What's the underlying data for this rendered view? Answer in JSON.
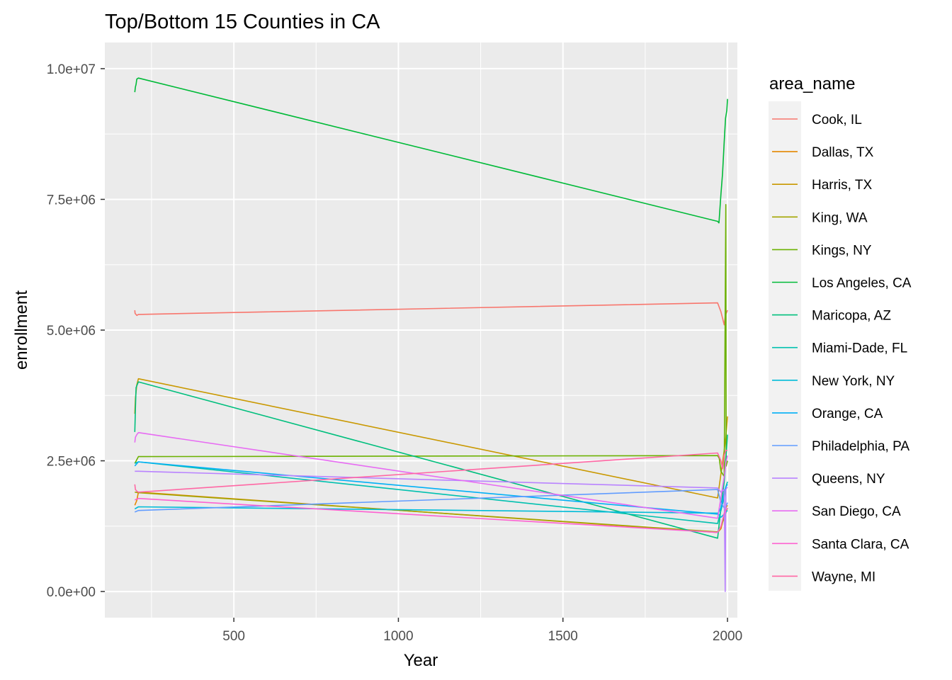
{
  "chart_data": {
    "type": "line",
    "title": "Top/Bottom 15 Counties in CA",
    "xlabel": "Year",
    "ylabel": "enrollment",
    "xlim": [
      108,
      2030
    ],
    "ylim": [
      -500000,
      10500000
    ],
    "xticks": [
      500,
      1000,
      1500,
      2000
    ],
    "xtick_labels": [
      "500",
      "1000",
      "1500",
      "2000"
    ],
    "yticks": [
      0,
      2500000,
      5000000,
      7500000,
      10000000
    ],
    "ytick_labels": [
      "0.0e+00",
      "2.5e+06",
      "5.0e+06",
      "7.5e+06",
      "1.0e+07"
    ],
    "grid": true,
    "legend_title": "area_name",
    "legend_position": "right",
    "series": [
      {
        "name": "Cook, IL",
        "color": "#F8766D",
        "points": [
          [
            199,
            5380000
          ],
          [
            200,
            5320000
          ],
          [
            205,
            5280000
          ],
          [
            210,
            5300000
          ],
          [
            1970,
            5520000
          ],
          [
            1980,
            5350000
          ],
          [
            1990,
            5100000
          ],
          [
            1993,
            5250000
          ],
          [
            1995,
            5300000
          ],
          [
            2000,
            5380000
          ]
        ]
      },
      {
        "name": "Dallas, TX",
        "color": "#E58700",
        "points": [
          [
            199,
            1650000
          ],
          [
            205,
            1740000
          ],
          [
            210,
            1900000
          ],
          [
            1970,
            1130000
          ],
          [
            1980,
            1200000
          ],
          [
            1990,
            1450000
          ],
          [
            1995,
            1600000
          ],
          [
            2000,
            1650000
          ]
        ]
      },
      {
        "name": "Harris, TX",
        "color": "#C99800",
        "points": [
          [
            199,
            3400000
          ],
          [
            201,
            3700000
          ],
          [
            205,
            3950000
          ],
          [
            210,
            4070000
          ],
          [
            1970,
            1790000
          ],
          [
            1980,
            2250000
          ],
          [
            1990,
            2700000
          ],
          [
            1995,
            2950000
          ],
          [
            2000,
            3350000
          ]
        ]
      },
      {
        "name": "King, WA",
        "color": "#A3A500",
        "points": [
          [
            199,
            1900000
          ],
          [
            210,
            1890000
          ],
          [
            1970,
            1140000
          ],
          [
            1980,
            1250000
          ],
          [
            1990,
            1400000
          ],
          [
            1995,
            1500000
          ],
          [
            2000,
            1600000
          ]
        ]
      },
      {
        "name": "Kings, NY",
        "color": "#6BB100",
        "points": [
          [
            199,
            2450000
          ],
          [
            210,
            2580000
          ],
          [
            1970,
            2600000
          ],
          [
            1975,
            2550000
          ],
          [
            1980,
            2300000
          ],
          [
            1990,
            2200000
          ],
          [
            1995,
            7400000
          ],
          [
            1996,
            2400000
          ],
          [
            2000,
            2500000
          ]
        ]
      },
      {
        "name": "Los Angeles, CA",
        "color": "#00BA38",
        "points": [
          [
            199,
            9550000
          ],
          [
            201,
            9650000
          ],
          [
            203,
            9700000
          ],
          [
            205,
            9800000
          ],
          [
            210,
            9820000
          ],
          [
            1970,
            7080000
          ],
          [
            1974,
            7050000
          ],
          [
            1980,
            7600000
          ],
          [
            1985,
            8000000
          ],
          [
            1990,
            8600000
          ],
          [
            1994,
            9050000
          ],
          [
            1998,
            9200000
          ],
          [
            2000,
            9420000
          ]
        ]
      },
      {
        "name": "Maricopa, AZ",
        "color": "#00BF7D",
        "points": [
          [
            199,
            3050000
          ],
          [
            201,
            3500000
          ],
          [
            203,
            3900000
          ],
          [
            210,
            4010000
          ],
          [
            1970,
            1020000
          ],
          [
            1980,
            1600000
          ],
          [
            1990,
            2100000
          ],
          [
            1995,
            2500000
          ],
          [
            2000,
            3000000
          ]
        ]
      },
      {
        "name": "Miami-Dade, FL",
        "color": "#00C0AF",
        "points": [
          [
            199,
            2450000
          ],
          [
            210,
            2480000
          ],
          [
            1970,
            1300000
          ],
          [
            1980,
            1550000
          ],
          [
            1990,
            1800000
          ],
          [
            1995,
            2000000
          ],
          [
            2000,
            2100000
          ]
        ]
      },
      {
        "name": "New York, NY",
        "color": "#00BCD8",
        "points": [
          [
            199,
            1580000
          ],
          [
            210,
            1620000
          ],
          [
            1970,
            1500000
          ],
          [
            1980,
            1420000
          ],
          [
            1990,
            1480000
          ],
          [
            1995,
            1520000
          ],
          [
            2000,
            1550000
          ]
        ]
      },
      {
        "name": "Orange, CA",
        "color": "#00B0F6",
        "points": [
          [
            199,
            2400000
          ],
          [
            210,
            2480000
          ],
          [
            1970,
            1480000
          ],
          [
            1980,
            1600000
          ],
          [
            1990,
            1900000
          ],
          [
            1995,
            2000000
          ],
          [
            2000,
            2050000
          ]
        ]
      },
      {
        "name": "Philadelphia, PA",
        "color": "#619CFF",
        "points": [
          [
            199,
            1520000
          ],
          [
            210,
            1550000
          ],
          [
            1970,
            1950000
          ],
          [
            1980,
            1700000
          ],
          [
            1990,
            1600000
          ],
          [
            1995,
            1620000
          ],
          [
            2000,
            1700000
          ]
        ]
      },
      {
        "name": "Queens, NY",
        "color": "#B983FF",
        "points": [
          [
            199,
            2300000
          ],
          [
            210,
            2300000
          ],
          [
            1970,
            1980000
          ],
          [
            1980,
            1900000
          ],
          [
            1990,
            1950000
          ],
          [
            1993,
            0
          ],
          [
            1995,
            1950000
          ],
          [
            2000,
            2000000
          ]
        ]
      },
      {
        "name": "San Diego, CA",
        "color": "#E76BF3",
        "points": [
          [
            199,
            2850000
          ],
          [
            201,
            2950000
          ],
          [
            205,
            3000000
          ],
          [
            210,
            3040000
          ],
          [
            1970,
            1400000
          ],
          [
            1980,
            1800000
          ],
          [
            1990,
            2200000
          ],
          [
            1995,
            2450000
          ],
          [
            2000,
            2600000
          ]
        ]
      },
      {
        "name": "Santa Clara, CA",
        "color": "#FD61D1",
        "points": [
          [
            199,
            1750000
          ],
          [
            210,
            1780000
          ],
          [
            1970,
            1130000
          ],
          [
            1980,
            1250000
          ],
          [
            1990,
            1500000
          ],
          [
            1995,
            1550000
          ],
          [
            2000,
            1600000
          ]
        ]
      },
      {
        "name": "Wayne, MI",
        "color": "#FF67A4",
        "points": [
          [
            199,
            2050000
          ],
          [
            201,
            1950000
          ],
          [
            205,
            1920000
          ],
          [
            210,
            1900000
          ],
          [
            1970,
            2650000
          ],
          [
            1980,
            2500000
          ],
          [
            1985,
            2350000
          ],
          [
            1990,
            2600000
          ],
          [
            1995,
            2700000
          ],
          [
            2000,
            2700000
          ]
        ]
      }
    ]
  }
}
